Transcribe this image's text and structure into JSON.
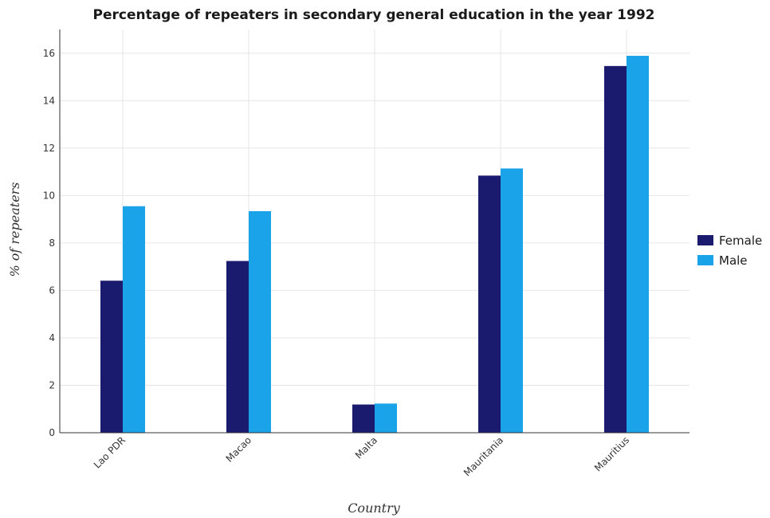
{
  "chart_data": {
    "type": "bar",
    "title": "Percentage of repeaters in secondary general education in the year 1992",
    "xlabel": "Country",
    "ylabel": "% of repeaters",
    "categories": [
      "Lao PDR",
      "Macao",
      "Malta",
      "Mauritania",
      "Mauritius"
    ],
    "series": [
      {
        "name": "Female",
        "color": "#1a1a6e",
        "values": [
          6.41,
          7.24,
          1.19,
          10.84,
          15.46
        ]
      },
      {
        "name": "Male",
        "color": "#1aa3e8",
        "values": [
          9.55,
          9.34,
          1.23,
          11.14,
          15.89
        ]
      }
    ],
    "ylim": [
      0,
      17
    ],
    "yticks": [
      0,
      2,
      4,
      6,
      8,
      10,
      12,
      14,
      16
    ],
    "grid": true,
    "legend_position": "right"
  }
}
